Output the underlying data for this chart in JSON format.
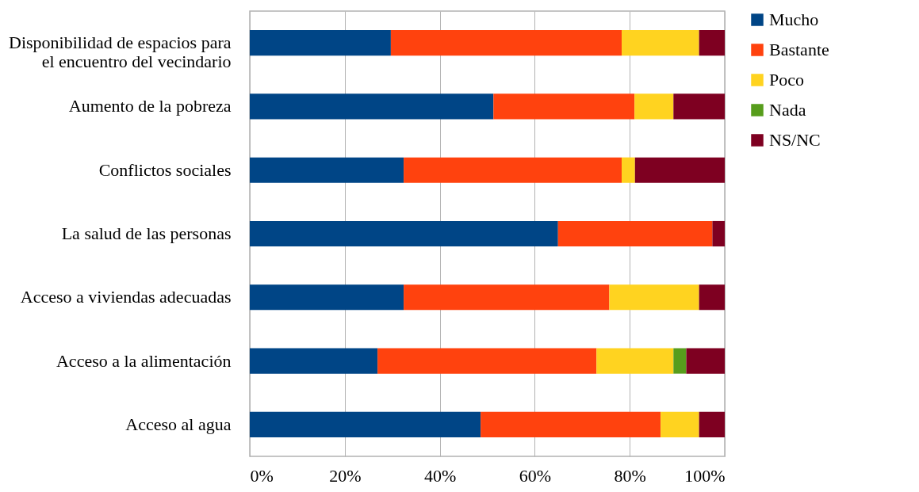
{
  "chart_data": {
    "type": "bar",
    "orientation": "horizontal",
    "stacked": true,
    "categories": [
      "Disponibilidad de espacios para el encuentro del vecindario",
      "Aumento de la pobreza",
      "Conflictos sociales",
      "La salud de las personas",
      "Acceso a viviendas adecuadas",
      "Acceso a la alimentación",
      "Acceso al agua"
    ],
    "series": [
      {
        "name": "Mucho",
        "color": "#004586",
        "values": [
          29.7,
          51.3,
          32.4,
          64.9,
          32.4,
          26.9,
          48.6
        ]
      },
      {
        "name": "Bastante",
        "color": "#ff420e",
        "values": [
          48.6,
          29.7,
          45.9,
          32.5,
          43.3,
          46.1,
          37.9
        ]
      },
      {
        "name": "Poco",
        "color": "#ffd320",
        "values": [
          16.3,
          8.2,
          2.8,
          0,
          18.9,
          16.2,
          8.1
        ]
      },
      {
        "name": "Nada",
        "color": "#579d1c",
        "values": [
          0,
          0,
          0,
          0,
          0,
          2.7,
          0
        ]
      },
      {
        "name": "NS/NC",
        "color": "#7e0021",
        "values": [
          5.4,
          10.8,
          18.9,
          2.6,
          5.4,
          8.1,
          5.4
        ]
      }
    ],
    "xlim": [
      0,
      100
    ],
    "xticks": [
      {
        "value": 0,
        "label": "0%"
      },
      {
        "value": 20,
        "label": "20%"
      },
      {
        "value": 40,
        "label": "40%"
      },
      {
        "value": 60,
        "label": "60%"
      },
      {
        "value": 80,
        "label": "80%"
      },
      {
        "value": 100,
        "label": "100%"
      }
    ],
    "grid": "x",
    "legend": "right"
  }
}
